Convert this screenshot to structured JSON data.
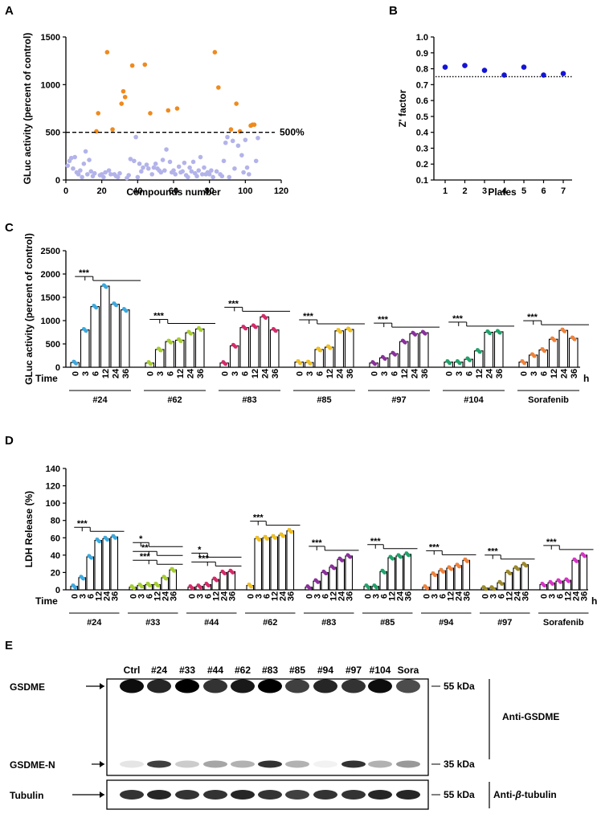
{
  "chart_data": [
    {
      "panel": "A",
      "type": "scatter",
      "xlabel": "Compounds number",
      "ylabel": "GLuc activity (percent of control)",
      "xlim": [
        0,
        120
      ],
      "ylim": [
        0,
        1500
      ],
      "xticks": [
        "0",
        "20",
        "40",
        "60",
        "80",
        "100",
        "120"
      ],
      "yticks": [
        "0",
        "500",
        "1000",
        "1500"
      ],
      "threshold": 500,
      "threshold_label": "500%",
      "colors": {
        "hit": "#ef8a1e",
        "nonhit": "#b3b3ea"
      },
      "hits": [
        [
          17,
          510
        ],
        [
          18,
          700
        ],
        [
          23,
          1340
        ],
        [
          26,
          530
        ],
        [
          31,
          800
        ],
        [
          32,
          930
        ],
        [
          33,
          870
        ],
        [
          37,
          1200
        ],
        [
          44,
          1210
        ],
        [
          47,
          700
        ],
        [
          57,
          730
        ],
        [
          62,
          750
        ],
        [
          83,
          1340
        ],
        [
          85,
          970
        ],
        [
          92,
          530
        ],
        [
          95,
          800
        ],
        [
          97,
          510
        ],
        [
          103,
          570
        ],
        [
          104,
          580
        ],
        [
          105,
          580
        ]
      ],
      "nonhits": [
        [
          1,
          150
        ],
        [
          2,
          200
        ],
        [
          3,
          230
        ],
        [
          4,
          120
        ],
        [
          5,
          240
        ],
        [
          6,
          80
        ],
        [
          7,
          60
        ],
        [
          8,
          100
        ],
        [
          9,
          30
        ],
        [
          10,
          170
        ],
        [
          11,
          300
        ],
        [
          12,
          60
        ],
        [
          13,
          210
        ],
        [
          14,
          90
        ],
        [
          15,
          40
        ],
        [
          16,
          70
        ],
        [
          19,
          50
        ],
        [
          20,
          60
        ],
        [
          21,
          30
        ],
        [
          22,
          80
        ],
        [
          24,
          100
        ],
        [
          25,
          60
        ],
        [
          27,
          60
        ],
        [
          28,
          40
        ],
        [
          29,
          30
        ],
        [
          30,
          70
        ],
        [
          34,
          20
        ],
        [
          35,
          50
        ],
        [
          36,
          220
        ],
        [
          38,
          200
        ],
        [
          39,
          450
        ],
        [
          40,
          30
        ],
        [
          41,
          170
        ],
        [
          42,
          90
        ],
        [
          43,
          130
        ],
        [
          45,
          160
        ],
        [
          46,
          120
        ],
        [
          48,
          60
        ],
        [
          49,
          130
        ],
        [
          50,
          170
        ],
        [
          51,
          120
        ],
        [
          52,
          100
        ],
        [
          53,
          80
        ],
        [
          54,
          210
        ],
        [
          55,
          100
        ],
        [
          56,
          320
        ],
        [
          58,
          190
        ],
        [
          59,
          80
        ],
        [
          60,
          100
        ],
        [
          61,
          60
        ],
        [
          63,
          140
        ],
        [
          64,
          80
        ],
        [
          65,
          90
        ],
        [
          66,
          180
        ],
        [
          67,
          50
        ],
        [
          68,
          30
        ],
        [
          69,
          130
        ],
        [
          70,
          90
        ],
        [
          71,
          190
        ],
        [
          72,
          70
        ],
        [
          73,
          40
        ],
        [
          74,
          100
        ],
        [
          75,
          240
        ],
        [
          76,
          60
        ],
        [
          77,
          130
        ],
        [
          78,
          60
        ],
        [
          79,
          80
        ],
        [
          80,
          60
        ],
        [
          81,
          100
        ],
        [
          82,
          30
        ],
        [
          84,
          90
        ],
        [
          86,
          60
        ],
        [
          87,
          40
        ],
        [
          88,
          200
        ],
        [
          89,
          390
        ],
        [
          90,
          450
        ],
        [
          91,
          30
        ],
        [
          93,
          410
        ],
        [
          94,
          120
        ],
        [
          96,
          360
        ],
        [
          98,
          260
        ],
        [
          99,
          80
        ],
        [
          100,
          420
        ],
        [
          101,
          130
        ],
        [
          102,
          60
        ],
        [
          106,
          200
        ],
        [
          107,
          440
        ]
      ]
    },
    {
      "panel": "B",
      "type": "scatter",
      "xlabel": "Plates",
      "ylabel": "Z' factor",
      "xlim": [
        0.5,
        7.5
      ],
      "ylim": [
        0.1,
        1.0
      ],
      "categories": [
        "1",
        "2",
        "3",
        "4",
        "5",
        "6",
        "7"
      ],
      "yticks": [
        "0.1",
        "0.2",
        "0.3",
        "0.4",
        "0.5",
        "0.6",
        "0.7",
        "0.8",
        "0.9",
        "1.0"
      ],
      "values": [
        0.81,
        0.82,
        0.79,
        0.76,
        0.81,
        0.76,
        0.77
      ],
      "threshold": 0.75,
      "color": "#1414d6"
    },
    {
      "panel": "C",
      "type": "bar",
      "xlabel_prefix": "Time",
      "unit": "h",
      "ylabel": "GLuc activity (percent of control)",
      "ylim": [
        0,
        2500
      ],
      "yticks": [
        "0",
        "500",
        "1000",
        "1500",
        "2000",
        "2500"
      ],
      "time_labels": [
        "0",
        "3",
        "6",
        "12",
        "24",
        "36"
      ],
      "significance": "***",
      "groups": [
        {
          "name": "#24",
          "color": "#3aa9e0",
          "values": [
            100,
            800,
            1300,
            1740,
            1350,
            1230
          ]
        },
        {
          "name": "#62",
          "color": "#a6cf2e",
          "values": [
            90,
            380,
            550,
            580,
            740,
            820
          ]
        },
        {
          "name": "#83",
          "color": "#d6296a",
          "values": [
            90,
            460,
            850,
            880,
            1080,
            800
          ]
        },
        {
          "name": "#85",
          "color": "#f0c020",
          "values": [
            110,
            100,
            380,
            430,
            780,
            810
          ]
        },
        {
          "name": "#97",
          "color": "#8a2f9c",
          "values": [
            90,
            200,
            290,
            550,
            720,
            740
          ]
        },
        {
          "name": "#104",
          "color": "#1fa36a",
          "values": [
            110,
            110,
            170,
            350,
            750,
            760
          ]
        },
        {
          "name": "Sorafenib",
          "color": "#f0823a",
          "values": [
            110,
            260,
            370,
            600,
            790,
            620
          ]
        }
      ]
    },
    {
      "panel": "D",
      "type": "bar",
      "xlabel_prefix": "Time",
      "unit": "h",
      "ylabel": "LDH Release (%)",
      "ylim": [
        0,
        140
      ],
      "yticks": [
        "0",
        "20",
        "40",
        "60",
        "80",
        "100",
        "120",
        "140"
      ],
      "time_labels": [
        "0",
        "3",
        "6",
        "12",
        "24",
        "36"
      ],
      "groups": [
        {
          "name": "#24",
          "color": "#3aa9e0",
          "values": [
            4,
            14,
            38,
            57,
            59,
            61
          ],
          "sig": [
            "***"
          ]
        },
        {
          "name": "#33",
          "color": "#a6cf2e",
          "values": [
            3,
            5,
            6,
            6,
            14,
            23
          ],
          "sig": [
            "*",
            "**",
            "***"
          ]
        },
        {
          "name": "#44",
          "color": "#d6296a",
          "values": [
            3,
            4,
            6,
            12,
            20,
            21
          ],
          "sig": [
            "*",
            "***"
          ]
        },
        {
          "name": "#62",
          "color": "#f0c020",
          "values": [
            5,
            59,
            60,
            61,
            63,
            68
          ],
          "sig": [
            "***"
          ]
        },
        {
          "name": "#83",
          "color": "#8a2f9c",
          "values": [
            3,
            10,
            20,
            26,
            35,
            39
          ],
          "sig": [
            "***"
          ]
        },
        {
          "name": "#85",
          "color": "#1fa36a",
          "values": [
            4,
            4,
            21,
            37,
            39,
            41
          ],
          "sig": [
            "***"
          ]
        },
        {
          "name": "#94",
          "color": "#f0823a",
          "values": [
            3,
            18,
            22,
            25,
            28,
            34
          ],
          "sig": [
            "***"
          ]
        },
        {
          "name": "#97",
          "color": "#9c8a2a",
          "values": [
            2,
            2,
            8,
            20,
            25,
            29
          ],
          "sig": [
            "***"
          ]
        },
        {
          "name": "Sorafenib",
          "color": "#d833c9",
          "values": [
            6,
            8,
            10,
            11,
            34,
            40
          ],
          "sig": [
            "***"
          ]
        }
      ]
    },
    {
      "panel": "E",
      "type": "table",
      "lanes": [
        "Ctrl",
        "#24",
        "#33",
        "#44",
        "#62",
        "#83",
        "#85",
        "#94",
        "#97",
        "#104",
        "Sora"
      ],
      "rows": [
        {
          "label": "GSDME",
          "marker": "55 kDa",
          "antibody": "Anti-GSDME",
          "intensity": [
            0.95,
            0.85,
            1.0,
            0.8,
            0.9,
            1.0,
            0.75,
            0.85,
            0.8,
            0.95,
            0.7
          ]
        },
        {
          "label": "GSDME-N",
          "marker": "35 kDa",
          "antibody": "",
          "intensity": [
            0.1,
            0.75,
            0.2,
            0.35,
            0.3,
            0.8,
            0.3,
            0.05,
            0.8,
            0.3,
            0.4
          ]
        },
        {
          "label": "Tubulin",
          "marker": "55 kDa",
          "antibody_prefix": "Anti-",
          "antibody_greek": "β",
          "antibody_suffix": "-tubulin",
          "intensity": [
            0.8,
            0.85,
            0.8,
            0.8,
            0.85,
            0.8,
            0.75,
            0.8,
            0.8,
            0.85,
            0.85
          ]
        }
      ]
    }
  ],
  "panel_letters": [
    "A",
    "B",
    "C",
    "D",
    "E"
  ]
}
